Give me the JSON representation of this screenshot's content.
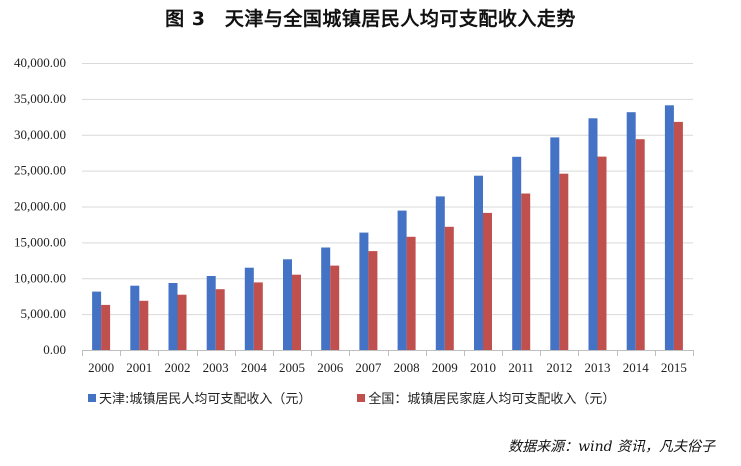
{
  "title": "图 3　天津与全国城镇居民人均可支配收入走势",
  "source": "数据来源：wind 资讯，凡夫俗子",
  "chart_data": {
    "type": "bar",
    "categories": [
      "2000",
      "2001",
      "2002",
      "2003",
      "2004",
      "2005",
      "2006",
      "2007",
      "2008",
      "2009",
      "2010",
      "2011",
      "2012",
      "2013",
      "2014",
      "2015"
    ],
    "ylim": [
      0,
      40000
    ],
    "yticks": [
      "0.00",
      "5,000.00",
      "10,000.00",
      "15,000.00",
      "20,000.00",
      "25,000.00",
      "30,000.00",
      "35,000.00",
      "40,000.00"
    ],
    "ytick_values": [
      0,
      5000,
      10000,
      15000,
      20000,
      25000,
      30000,
      35000,
      40000
    ],
    "grid": true,
    "legend_position": "bottom",
    "series": [
      {
        "name": "天津:城镇居民人均可支配收入（元）",
        "color": "#4472C4",
        "values": [
          8141,
          8959,
          9338,
          10313,
          11467,
          12639,
          14283,
          16357,
          19423,
          21402,
          24293,
          26921,
          29626,
          32294,
          33140,
          34101
        ]
      },
      {
        "name": "全国：城镇居民家庭人均可支配收入（元）",
        "color": "#C0504D",
        "values": [
          6280,
          6860,
          7703,
          8472,
          9422,
          10493,
          11759,
          13786,
          15781,
          17175,
          19109,
          21810,
          24565,
          26955,
          29381,
          31790
        ]
      }
    ]
  }
}
